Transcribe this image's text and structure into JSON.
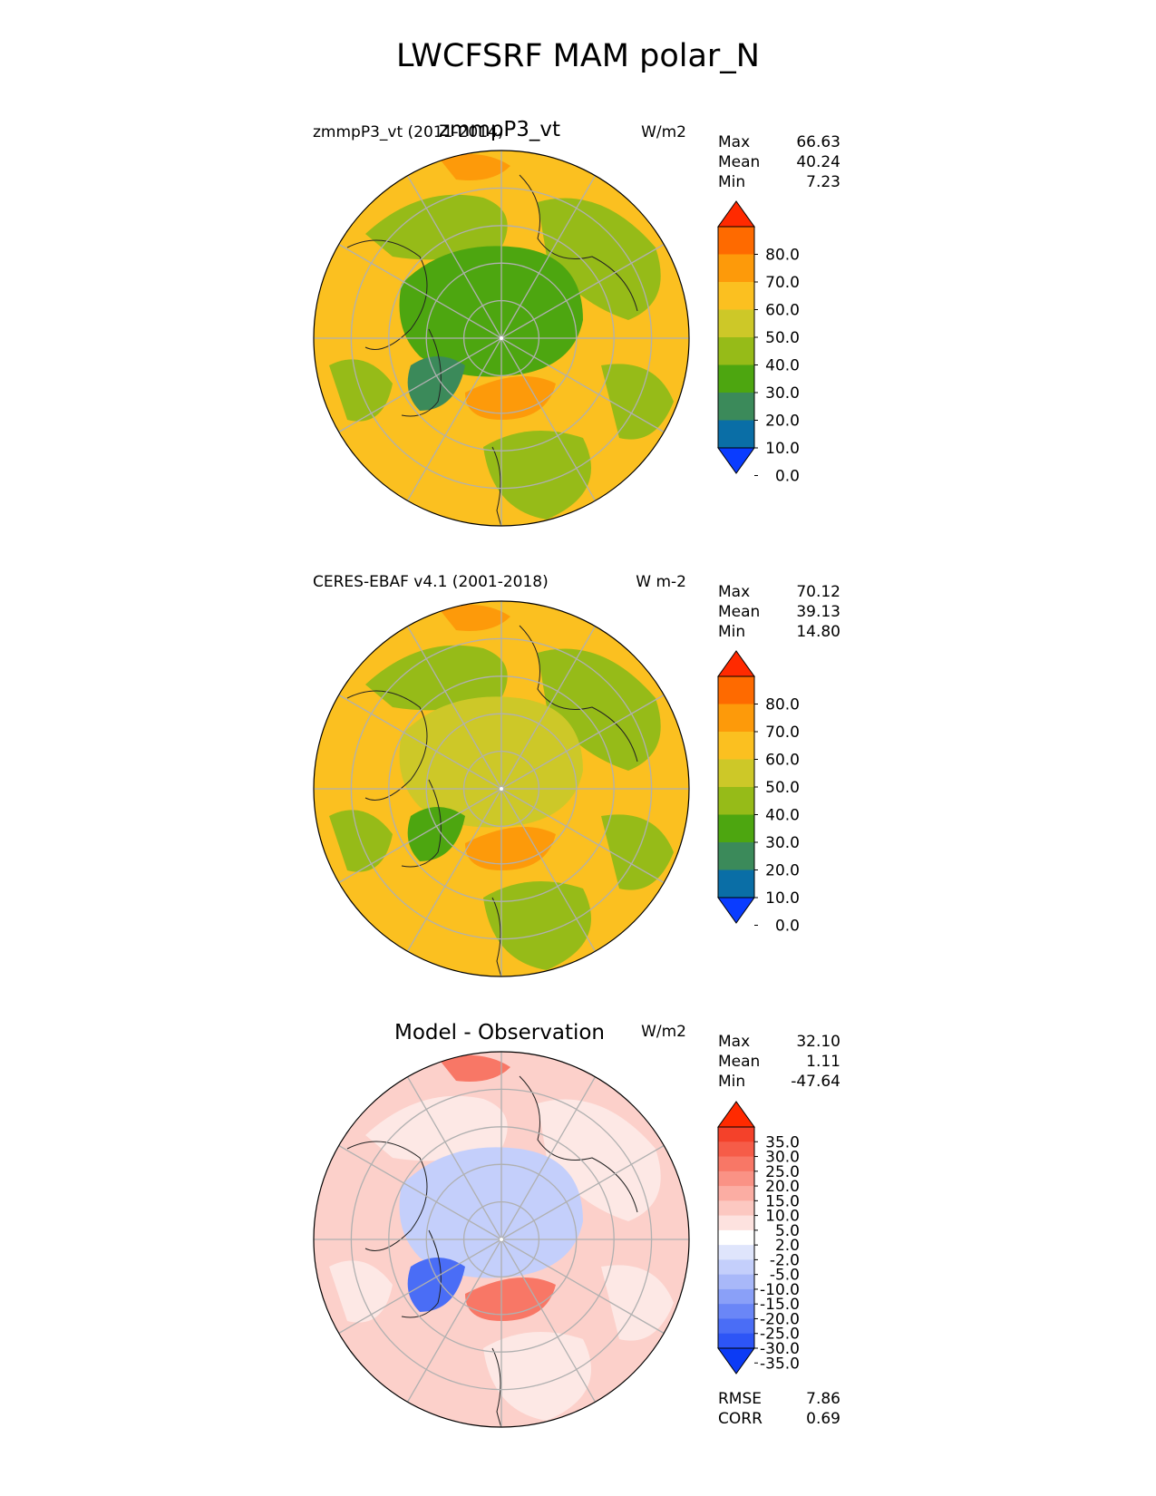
{
  "figure_title": "LWCFSRF MAM polar_N",
  "chart_data": [
    {
      "type": "heatmap",
      "panel": "test",
      "projection": "north polar stereographic",
      "center_title": "zmmpP3_vt",
      "left_title": "zmmpP3_vt (2011-2014)",
      "units": "W/m2",
      "stats": [
        {
          "label": "Max",
          "value": "66.63"
        },
        {
          "label": "Mean",
          "value": "40.24"
        },
        {
          "label": "Min",
          "value": "7.23"
        }
      ],
      "colorbar": {
        "levels": [
          0,
          10,
          20,
          30,
          40,
          50,
          60,
          70,
          80
        ],
        "tick_labels": [
          "80.0",
          "70.0",
          "60.0",
          "50.0",
          "40.0",
          "30.0",
          "20.0",
          "10.0",
          "0.0"
        ],
        "colors_low_to_high": [
          "#0a3cff",
          "#0a6ea6",
          "#3b8a5a",
          "#4da610",
          "#96bb18",
          "#cdc828",
          "#fbc020",
          "#fd9a0a",
          "#fe6a00",
          "#ff2a00"
        ]
      },
      "field_colors": {
        "ocean": "#fbc020",
        "land": "#96bb18",
        "arctic": "#4da610",
        "high": "#fd9a0a",
        "low": "#3b8a5a"
      }
    },
    {
      "type": "heatmap",
      "panel": "reference",
      "projection": "north polar stereographic",
      "center_title": "",
      "left_title": "CERES-EBAF v4.1 (2001-2018)",
      "units": "W m-2",
      "stats": [
        {
          "label": "Max",
          "value": "70.12"
        },
        {
          "label": "Mean",
          "value": "39.13"
        },
        {
          "label": "Min",
          "value": "14.80"
        }
      ],
      "colorbar": {
        "levels": [
          0,
          10,
          20,
          30,
          40,
          50,
          60,
          70,
          80
        ],
        "tick_labels": [
          "80.0",
          "70.0",
          "60.0",
          "50.0",
          "40.0",
          "30.0",
          "20.0",
          "10.0",
          "0.0"
        ],
        "colors_low_to_high": [
          "#0a3cff",
          "#0a6ea6",
          "#3b8a5a",
          "#4da610",
          "#96bb18",
          "#cdc828",
          "#fbc020",
          "#fd9a0a",
          "#fe6a00",
          "#ff2a00"
        ]
      },
      "field_colors": {
        "ocean": "#fbc020",
        "land": "#96bb18",
        "arctic": "#cdc828",
        "high": "#fd9a0a",
        "low": "#4da610"
      }
    },
    {
      "type": "heatmap",
      "panel": "difference",
      "projection": "north polar stereographic",
      "center_title": "Model - Observation",
      "left_title": "",
      "units": "W/m2",
      "stats": [
        {
          "label": "Max",
          "value": "32.10"
        },
        {
          "label": "Mean",
          "value": "1.11"
        },
        {
          "label": "Min",
          "value": "-47.64"
        }
      ],
      "extra_stats": [
        {
          "label": "RMSE",
          "value": "7.86"
        },
        {
          "label": "CORR",
          "value": "0.69"
        }
      ],
      "colorbar": {
        "levels": [
          -35,
          -30,
          -25,
          -20,
          -15,
          -10,
          -5,
          -2,
          2,
          5,
          10,
          15,
          20,
          25,
          30,
          35
        ],
        "tick_labels": [
          "35.0",
          "30.0",
          "25.0",
          "20.0",
          "15.0",
          "10.0",
          "5.0",
          "2.0",
          "-2.0",
          "-5.0",
          "-10.0",
          "-15.0",
          "-20.0",
          "-25.0",
          "-30.0",
          "-35.0"
        ],
        "colors_low_to_high": [
          "#0c3bf5",
          "#2d55f6",
          "#4a6df6",
          "#6a86f7",
          "#8aa0f8",
          "#a8b8f9",
          "#c4cffb",
          "#dfe5fc",
          "#ffffff",
          "#fde2df",
          "#fcc8c1",
          "#fbada3",
          "#fa9285",
          "#f87766",
          "#f65c48",
          "#f4412a",
          "#ff2a00"
        ]
      },
      "field_colors": {
        "ocean": "#fcd0ca",
        "land": "#fde8e5",
        "arctic": "#c4cffb",
        "high": "#f87766",
        "low": "#4a6df6"
      }
    }
  ]
}
